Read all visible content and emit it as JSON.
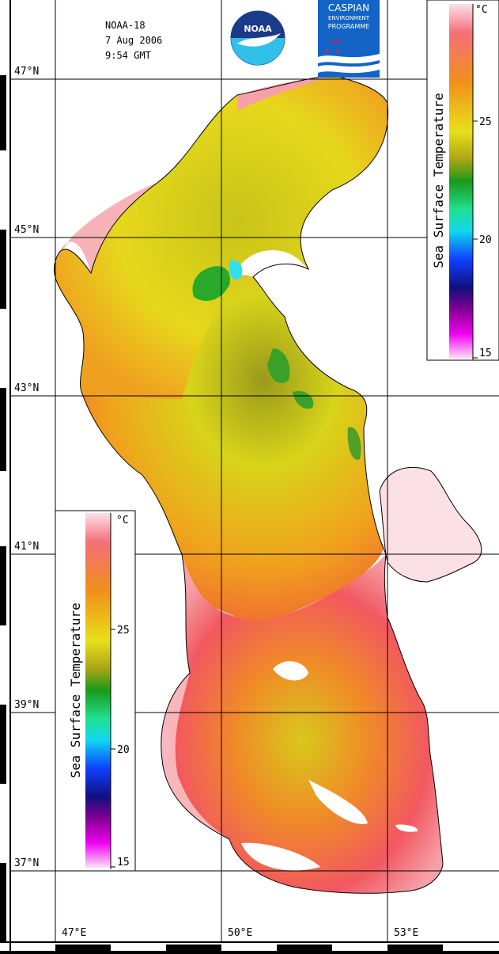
{
  "header": {
    "satellite": "NOAA-18",
    "date": "7 Aug 2006",
    "time": "9:54 GMT"
  },
  "logos": {
    "noaa": "NOAA",
    "cep_line1": "CASPIAN",
    "cep_line2": "ENVIRONMENT",
    "cep_line3": "PROGRAMME"
  },
  "latitude_labels": [
    "47°N",
    "45°N",
    "43°N",
    "41°N",
    "39°N",
    "37°N"
  ],
  "longitude_labels": [
    "47°E",
    "50°E",
    "53°E"
  ],
  "colorbar_top": {
    "title": "Sea Surface Temperature",
    "unit": "°C",
    "ticks": [
      "25",
      "20",
      "15"
    ]
  },
  "colorbar_bottom": {
    "title": "Sea Surface Temperature",
    "unit": "°C",
    "ticks": [
      "25",
      "20",
      "15"
    ]
  },
  "colors": {
    "background": "#ffffff",
    "grid": "#000000",
    "land": "#ffffff",
    "warm": "#f2595f",
    "hot": "#fbc5c7",
    "orange": "#f5901c",
    "yellow": "#e4e01a",
    "olive": "#a8a614",
    "green": "#2aa82a"
  }
}
